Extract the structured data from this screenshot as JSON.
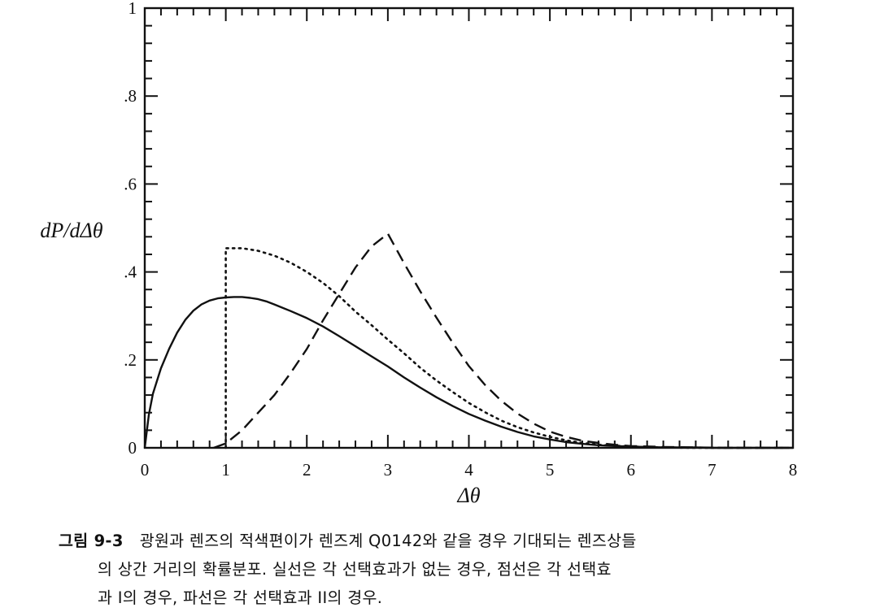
{
  "chart_data": {
    "type": "line",
    "xlabel": "Δθ",
    "ylabel": "dP/dΔθ",
    "xlim": [
      0,
      8
    ],
    "ylim": [
      0,
      1
    ],
    "x_ticks": [
      "0",
      "1",
      "2",
      "3",
      "4",
      "5",
      "6",
      "7",
      "8"
    ],
    "y_ticks": [
      "0",
      ".2",
      ".4",
      ".6",
      ".8",
      "1"
    ],
    "grid": false,
    "legend": "none",
    "series": [
      {
        "style": "solid",
        "x": [
          0,
          0.05,
          0.1,
          0.2,
          0.3,
          0.4,
          0.5,
          0.6,
          0.7,
          0.8,
          0.9,
          1.0,
          1.1,
          1.2,
          1.3,
          1.4,
          1.5,
          1.6,
          1.8,
          2.0,
          2.2,
          2.4,
          2.6,
          2.8,
          3.0,
          3.2,
          3.4,
          3.6,
          3.8,
          4.0,
          4.2,
          4.4,
          4.6,
          4.8,
          5.0,
          5.2,
          5.4,
          5.6,
          5.8,
          6.0,
          6.2,
          6.4,
          6.6,
          6.8,
          7.0,
          7.2,
          7.4,
          7.6,
          7.8,
          8.0
        ],
        "y": [
          0,
          0.075,
          0.123,
          0.181,
          0.225,
          0.262,
          0.291,
          0.312,
          0.326,
          0.335,
          0.34,
          0.342,
          0.343,
          0.343,
          0.341,
          0.338,
          0.333,
          0.326,
          0.311,
          0.295,
          0.276,
          0.254,
          0.231,
          0.208,
          0.185,
          0.16,
          0.137,
          0.115,
          0.095,
          0.077,
          0.062,
          0.048,
          0.036,
          0.026,
          0.019,
          0.013,
          0.009,
          0.006,
          0.004,
          0.003,
          0.002,
          0.001,
          0.001,
          0.001,
          0,
          0,
          0,
          0,
          0,
          0
        ]
      },
      {
        "style": "dotted",
        "x": [
          1.0,
          1.0,
          1.2,
          1.4,
          1.6,
          1.8,
          2.0,
          2.2,
          2.4,
          2.6,
          2.8,
          3.0,
          3.2,
          3.4,
          3.6,
          3.8,
          4.0,
          4.2,
          4.4,
          4.6,
          4.8,
          5.0,
          5.2,
          5.4,
          5.6,
          5.8,
          6.0,
          6.4,
          6.8,
          7.2,
          7.6,
          8.0
        ],
        "y": [
          0,
          0.454,
          0.454,
          0.448,
          0.437,
          0.421,
          0.4,
          0.375,
          0.345,
          0.31,
          0.279,
          0.246,
          0.215,
          0.182,
          0.153,
          0.127,
          0.102,
          0.081,
          0.062,
          0.047,
          0.035,
          0.025,
          0.017,
          0.011,
          0.007,
          0.005,
          0.003,
          0.001,
          0,
          0,
          0,
          0
        ]
      },
      {
        "style": "dashed",
        "x": [
          0.85,
          1.0,
          1.2,
          1.4,
          1.6,
          1.8,
          2.0,
          2.2,
          2.4,
          2.6,
          2.8,
          3.0,
          3.2,
          3.4,
          3.6,
          3.8,
          4.0,
          4.2,
          4.4,
          4.6,
          4.8,
          5.0,
          5.2,
          5.4,
          5.6,
          5.8,
          6.0,
          6.4,
          6.8,
          7.2,
          7.6,
          8.0
        ],
        "y": [
          0,
          0.01,
          0.04,
          0.08,
          0.12,
          0.17,
          0.225,
          0.29,
          0.35,
          0.41,
          0.458,
          0.487,
          0.42,
          0.356,
          0.296,
          0.239,
          0.186,
          0.143,
          0.107,
          0.078,
          0.055,
          0.037,
          0.025,
          0.016,
          0.011,
          0.007,
          0.004,
          0.002,
          0.001,
          0,
          0,
          0
        ]
      }
    ]
  },
  "caption": {
    "label": "그림 9-3",
    "line1": "광원과 렌즈의 적색편이가 렌즈계 Q0142와 같을 경우 기대되는 렌즈상들",
    "line2": "의 상간 거리의 확률분포. 실선은 각 선택효과가 없는 경우, 점선은 각 선택효",
    "line3": "과 I의 경우, 파선은 각 선택효과 II의 경우."
  }
}
